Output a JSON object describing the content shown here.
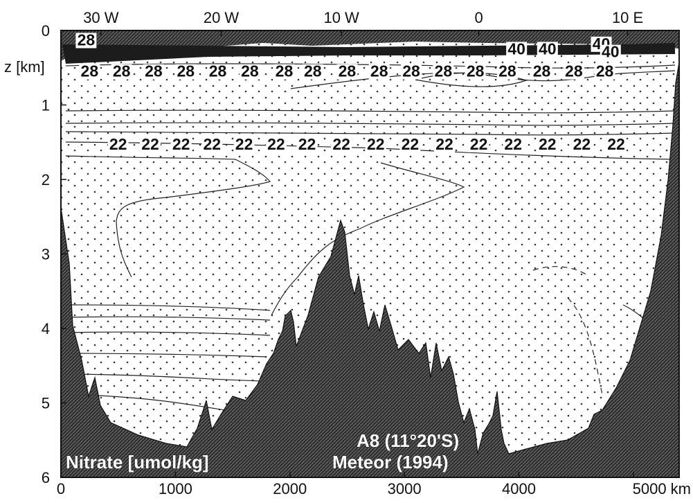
{
  "chart_data": {
    "type": "contour",
    "x_axis": {
      "ticks": [
        {
          "value": 0,
          "label": "0"
        },
        {
          "value": 1000,
          "label": "1000"
        },
        {
          "value": 2000,
          "label": "2000"
        },
        {
          "value": 3000,
          "label": "3000"
        },
        {
          "value": 4000,
          "label": "4000"
        },
        {
          "value": 5000,
          "label": "5000 km"
        }
      ],
      "range": [
        0,
        5400
      ]
    },
    "top_axis": {
      "ticks": [
        {
          "value": 350,
          "label": "30 W"
        },
        {
          "value": 1400,
          "label": "20 W"
        },
        {
          "value": 2450,
          "label": "10 W"
        },
        {
          "value": 3650,
          "label": "0"
        },
        {
          "value": 4950,
          "label": "10 E"
        }
      ]
    },
    "y_axis": {
      "ticks": [
        {
          "value": 0,
          "label": "0"
        },
        {
          "value": 1,
          "label": "1"
        },
        {
          "value": 2,
          "label": "2"
        },
        {
          "value": 3,
          "label": "3"
        },
        {
          "value": 4,
          "label": "4"
        },
        {
          "value": 5,
          "label": "5"
        },
        {
          "value": 6,
          "label": "6"
        }
      ],
      "range": [
        0,
        6
      ],
      "inverted": true,
      "label": "z [km]"
    },
    "contour_labels": [
      {
        "text": "28",
        "x": 220,
        "z": 0.2
      },
      {
        "text": "40",
        "x": 3980,
        "z": 0.32
      },
      {
        "text": "40",
        "x": 4250,
        "z": 0.32
      },
      {
        "text": "40",
        "x": 4720,
        "z": 0.25
      },
      {
        "text": "40",
        "x": 4800,
        "z": 0.36
      },
      {
        "text": "28",
        "x": 250,
        "z": 0.62
      },
      {
        "text": "28",
        "x": 530,
        "z": 0.62
      },
      {
        "text": "28",
        "x": 810,
        "z": 0.62
      },
      {
        "text": "28",
        "x": 1090,
        "z": 0.62
      },
      {
        "text": "28",
        "x": 1370,
        "z": 0.62
      },
      {
        "text": "28",
        "x": 1650,
        "z": 0.62
      },
      {
        "text": "28",
        "x": 1950,
        "z": 0.62
      },
      {
        "text": "28",
        "x": 2200,
        "z": 0.62
      },
      {
        "text": "28",
        "x": 2500,
        "z": 0.62
      },
      {
        "text": "28",
        "x": 2780,
        "z": 0.62
      },
      {
        "text": "28",
        "x": 3060,
        "z": 0.62
      },
      {
        "text": "28",
        "x": 3340,
        "z": 0.62
      },
      {
        "text": "28",
        "x": 3620,
        "z": 0.62
      },
      {
        "text": "28",
        "x": 3900,
        "z": 0.62
      },
      {
        "text": "28",
        "x": 4200,
        "z": 0.62
      },
      {
        "text": "28",
        "x": 4480,
        "z": 0.62
      },
      {
        "text": "28",
        "x": 4750,
        "z": 0.62
      },
      {
        "text": "22",
        "x": 500,
        "z": 1.6
      },
      {
        "text": "22",
        "x": 780,
        "z": 1.6
      },
      {
        "text": "22",
        "x": 1050,
        "z": 1.6
      },
      {
        "text": "22",
        "x": 1320,
        "z": 1.6
      },
      {
        "text": "22",
        "x": 1600,
        "z": 1.6
      },
      {
        "text": "22",
        "x": 1880,
        "z": 1.6
      },
      {
        "text": "22",
        "x": 2150,
        "z": 1.6
      },
      {
        "text": "22",
        "x": 2450,
        "z": 1.6
      },
      {
        "text": "22",
        "x": 2750,
        "z": 1.6
      },
      {
        "text": "22",
        "x": 3050,
        "z": 1.6
      },
      {
        "text": "22",
        "x": 3350,
        "z": 1.6
      },
      {
        "text": "22",
        "x": 3650,
        "z": 1.6
      },
      {
        "text": "22",
        "x": 3950,
        "z": 1.6
      },
      {
        "text": "22",
        "x": 4250,
        "z": 1.6
      },
      {
        "text": "22",
        "x": 4550,
        "z": 1.6
      },
      {
        "text": "22",
        "x": 4850,
        "z": 1.6
      }
    ],
    "annotations": [
      "Nitrate [umol/kg]",
      "A8 (11°20'S)",
      "Meteor (1994)"
    ]
  }
}
